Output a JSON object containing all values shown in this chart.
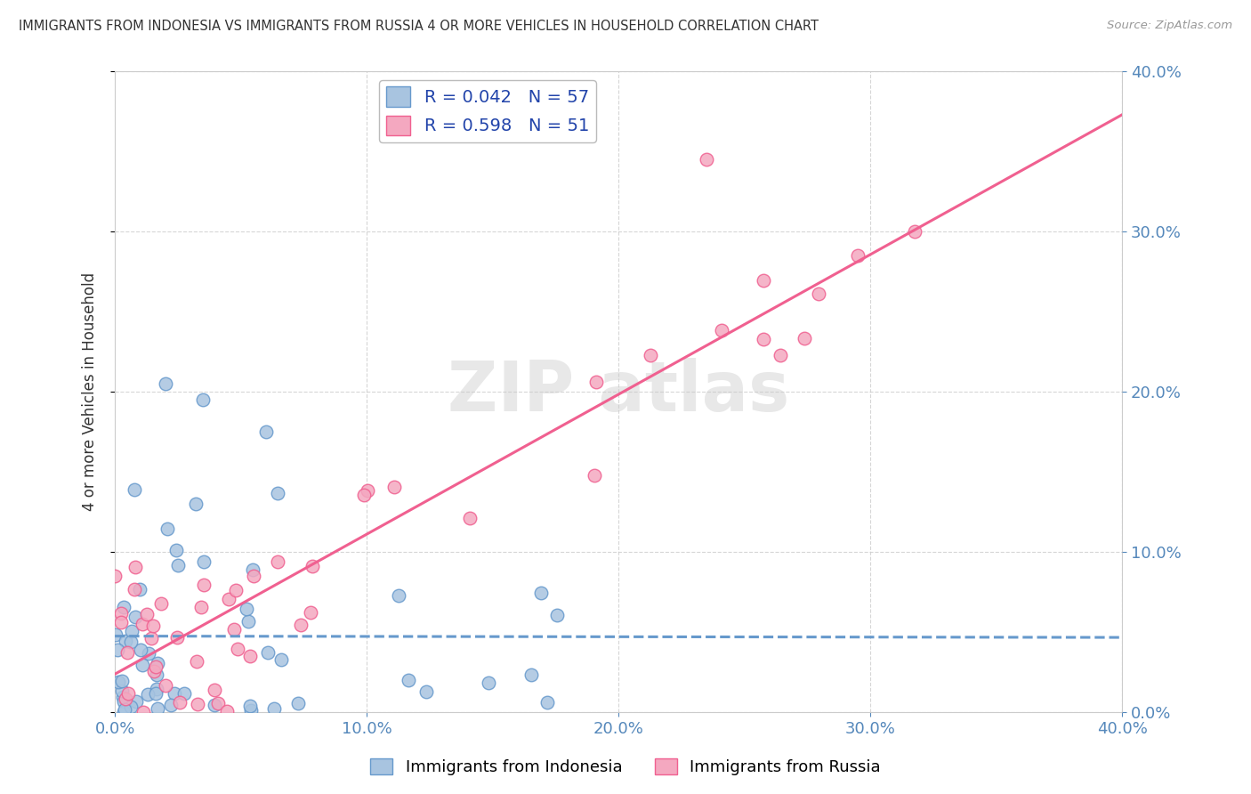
{
  "title": "IMMIGRANTS FROM INDONESIA VS IMMIGRANTS FROM RUSSIA 4 OR MORE VEHICLES IN HOUSEHOLD CORRELATION CHART",
  "source": "Source: ZipAtlas.com",
  "ylabel_label": "4 or more Vehicles in Household",
  "watermark": "ZIPAtlas",
  "indonesia_color": "#a8c4e0",
  "russia_color": "#f4a8c0",
  "indonesia_line_color": "#6699cc",
  "russia_line_color": "#f06090",
  "R_indonesia": 0.042,
  "N_indonesia": 57,
  "R_russia": 0.598,
  "N_russia": 51,
  "xmin": 0.0,
  "xmax": 0.4,
  "ymin": 0.0,
  "ymax": 0.4,
  "title_color": "#333333",
  "axis_label_color": "#5588bb",
  "grid_color": "#cccccc",
  "background_color": "#ffffff"
}
